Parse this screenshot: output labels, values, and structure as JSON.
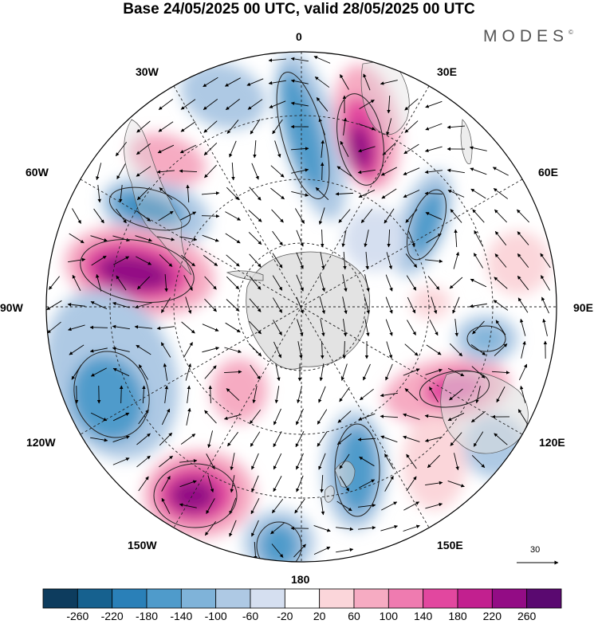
{
  "title": "Base 24/05/2025 00 UTC, valid 28/05/2025 00 UTC",
  "brand": "MODES",
  "brand_mark": "©",
  "lon_labels": {
    "n0": "0",
    "e30": "30E",
    "e60": "60E",
    "e90": "90E",
    "e120": "120E",
    "e150": "150E",
    "s180": "180",
    "w150": "150W",
    "w120": "120W",
    "w90": "90W",
    "w60": "60W",
    "w30": "30W"
  },
  "reference_vector": {
    "label": "30",
    "value": 30
  },
  "colorbar": {
    "ticks": [
      "-260",
      "-220",
      "-180",
      "-140",
      "-100",
      "-60",
      "-20",
      "20",
      "60",
      "100",
      "140",
      "180",
      "220",
      "260"
    ],
    "colors": [
      "#0d3c5e",
      "#16618f",
      "#2a80b8",
      "#4f9bcb",
      "#7fb3d9",
      "#aec9e4",
      "#d5dff0",
      "#ffffff",
      "#fbd6da",
      "#f6abc2",
      "#ef7bb0",
      "#e2479f",
      "#c2208f",
      "#930c85",
      "#5a0970"
    ]
  },
  "colors": {
    "land": "#dcdcdc",
    "coast": "#555555",
    "grid": "#222222"
  }
}
